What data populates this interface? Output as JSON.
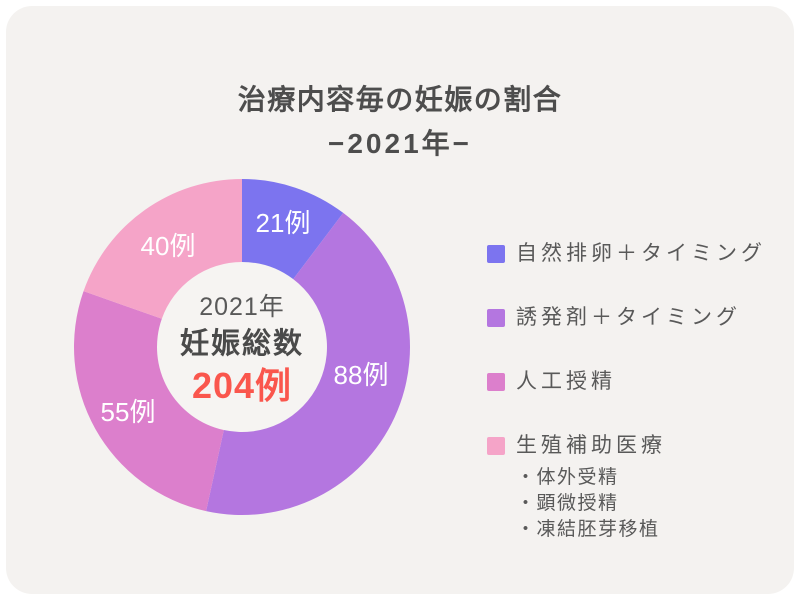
{
  "title": {
    "line1": "治療内容毎の妊娠の割合",
    "line2": "−2021年−"
  },
  "donut_center": {
    "year": "2021年",
    "label": "妊娠総数",
    "total": "204例"
  },
  "chart_data": {
    "type": "pie",
    "subtype": "donut",
    "title": "治療内容毎の妊娠の割合 −2021年−",
    "unit": "例",
    "total_value": 204,
    "center_text": [
      "2021年",
      "妊娠総数",
      "204例"
    ],
    "start_angle_deg": 0,
    "direction": "clockwise",
    "inner_radius_ratio": 0.5,
    "legend_position": "right",
    "segments": [
      {
        "legend_label": "自然排卵＋タイミング",
        "value": 21,
        "data_label": "21例",
        "color": "#7C74EF",
        "sub_items": []
      },
      {
        "legend_label": "誘発剤＋タイミング",
        "value": 88,
        "data_label": "88例",
        "color": "#B476E0",
        "sub_items": []
      },
      {
        "legend_label": "人工授精",
        "value": 55,
        "data_label": "55例",
        "color": "#DC7FCC",
        "sub_items": []
      },
      {
        "legend_label": "生殖補助医療",
        "value": 40,
        "data_label": "40例",
        "color": "#F5A4C8",
        "sub_items": [
          "・体外受精",
          "・顕微授精",
          "・凍結胚芽移植"
        ]
      }
    ]
  },
  "colors": {
    "page_background": "#FFFFFF",
    "canvas_background": "#F4F2F0",
    "title_text": "#4D4D4D",
    "center_year_text": "#595959",
    "center_label_text": "#4A4A4A",
    "center_total_text": "#FA564D",
    "segment_label_text": "#FFFFFF",
    "legend_text": "#595959",
    "donut_hole": "#F6F4F2"
  }
}
